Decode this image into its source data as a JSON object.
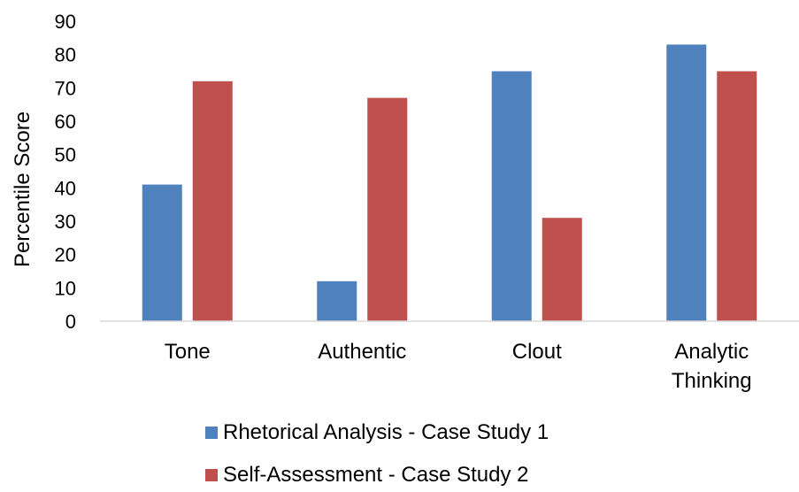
{
  "chart_data": {
    "type": "bar",
    "title": "",
    "xlabel": "",
    "ylabel": "Percentile Score",
    "ylim": [
      0,
      90
    ],
    "yticks": [
      0,
      10,
      20,
      30,
      40,
      50,
      60,
      70,
      80,
      90
    ],
    "grid": false,
    "legend_position": "bottom",
    "categories": [
      [
        "Tone"
      ],
      [
        "Authentic"
      ],
      [
        "Clout"
      ],
      [
        "Analytic",
        "Thinking"
      ]
    ],
    "series": [
      {
        "name": "Rhetorical Analysis - Case Study 1",
        "color": "#4F81BD",
        "values": [
          41,
          12,
          75,
          83
        ]
      },
      {
        "name": "Self-Assessment - Case Study 2",
        "color": "#C0504D",
        "values": [
          72,
          67,
          31,
          75
        ]
      }
    ]
  }
}
